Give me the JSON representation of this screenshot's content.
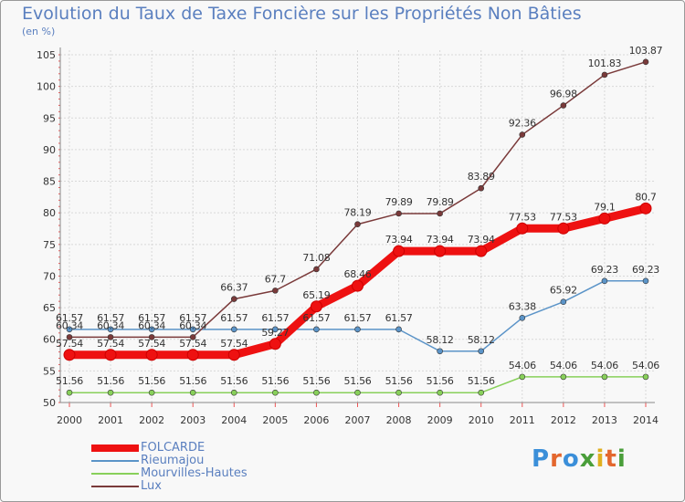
{
  "title": "Evolution du Taux de Taxe Foncière sur les Propriétés Non Bâties",
  "unit_label": "(en %)",
  "logo": {
    "letters": [
      "P",
      "r",
      "o",
      "x",
      "i",
      "t",
      "i"
    ],
    "colors": [
      "#3b8fd9",
      "#e3672e",
      "#3b8fd9",
      "#4a9e3a",
      "#e0b020",
      "#e3672e",
      "#4a9e3a"
    ]
  },
  "chart_data": {
    "type": "line",
    "title": "Evolution du Taux de Taxe Foncière sur les Propriétés Non Bâties",
    "xlabel": "",
    "ylabel": "(en %)",
    "x": [
      "2000",
      "2001",
      "2002",
      "2003",
      "2004",
      "2005",
      "2006",
      "2007",
      "2008",
      "2009",
      "2010",
      "2011",
      "2012",
      "2013",
      "2014"
    ],
    "ylim": [
      50,
      105
    ],
    "yticks": [
      50,
      55,
      60,
      65,
      70,
      75,
      80,
      85,
      90,
      95,
      100,
      105
    ],
    "grid": true,
    "legend_position": "bottom-left",
    "series": [
      {
        "name": "FOLCARDE",
        "color": "#ee1111",
        "emphasis": true,
        "values": [
          57.54,
          57.54,
          57.54,
          57.54,
          57.54,
          59.27,
          65.19,
          68.46,
          73.94,
          73.94,
          73.94,
          77.53,
          77.53,
          79.1,
          80.7
        ],
        "labels": [
          "57.54",
          "57.54",
          "57.54",
          "57.54",
          "57.54",
          "59.27",
          "65.19",
          "68.46",
          "73.94",
          "73.94",
          "73.94",
          "77.53",
          "77.53",
          "79.1",
          "80.7"
        ]
      },
      {
        "name": "Rieumajou",
        "color": "#5b94c8",
        "values": [
          61.57,
          61.57,
          61.57,
          61.57,
          61.57,
          61.57,
          61.57,
          61.57,
          61.57,
          58.12,
          58.12,
          63.38,
          65.92,
          69.23,
          69.23
        ],
        "labels": [
          "61.57",
          "61.57",
          "61.57",
          "61.57",
          "61.57",
          "61.57",
          "61.57",
          "61.57",
          "61.57",
          "58.12",
          "58.12",
          "63.38",
          "65.92",
          "69.23",
          "69.23"
        ]
      },
      {
        "name": "Mourvilles-Hautes",
        "color": "#88d05a",
        "values": [
          51.56,
          51.56,
          51.56,
          51.56,
          51.56,
          51.56,
          51.56,
          51.56,
          51.56,
          51.56,
          51.56,
          54.06,
          54.06,
          54.06,
          54.06
        ],
        "labels": [
          "51.56",
          "51.56",
          "51.56",
          "51.56",
          "51.56",
          "51.56",
          "51.56",
          "51.56",
          "51.56",
          "51.56",
          "51.56",
          "54.06",
          "54.06",
          "54.06",
          "54.06"
        ]
      },
      {
        "name": "Lux",
        "color": "#7a3a3a",
        "values": [
          60.34,
          60.34,
          60.34,
          60.34,
          66.37,
          67.7,
          71.08,
          78.19,
          79.89,
          79.89,
          83.89,
          92.36,
          96.98,
          101.83,
          103.87
        ],
        "labels": [
          "60.34",
          "60.34",
          "60.34",
          "60.34",
          "66.37",
          "67.7",
          "71.08",
          "78.19",
          "79.89",
          "79.89",
          "83.89",
          "92.36",
          "96.98",
          "101.83",
          "103.87"
        ]
      }
    ]
  }
}
